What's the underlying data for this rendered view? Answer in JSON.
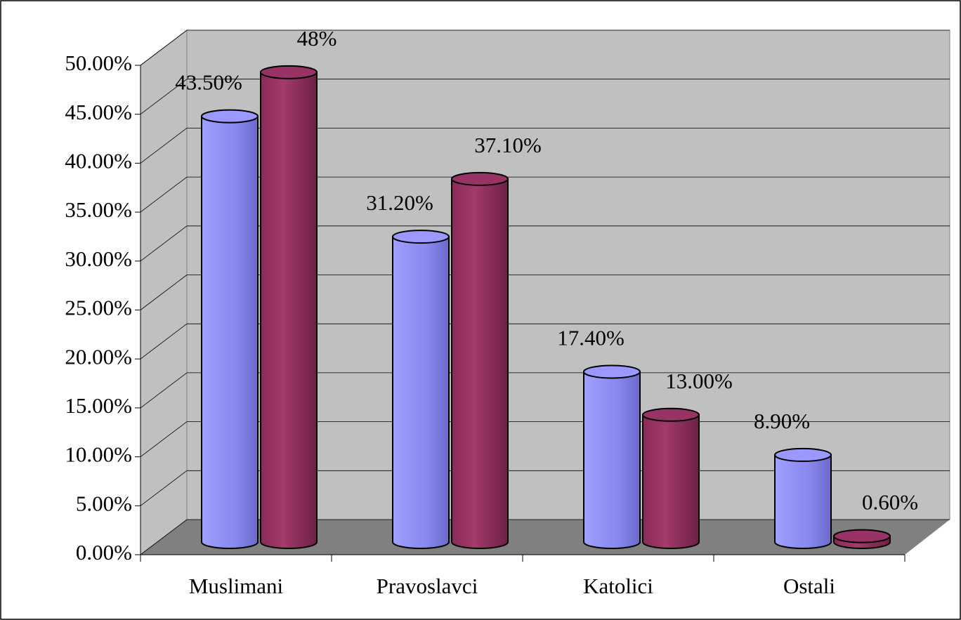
{
  "chart_data": {
    "type": "bar3d",
    "categories": [
      "Muslimani",
      "Pravoslavci",
      "Katolici",
      "Ostali"
    ],
    "series": [
      {
        "color": "#9999ff",
        "values": [
          43.5,
          31.2,
          17.4,
          8.9
        ],
        "value_labels": [
          "43.50%",
          "31.20%",
          "17.40%",
          "8.90%"
        ]
      },
      {
        "color": "#993366",
        "values": [
          48,
          37.1,
          13.0,
          0.6
        ],
        "value_labels": [
          "48%",
          "37.10%",
          "13.00%",
          "0.60%"
        ]
      }
    ],
    "ylim": [
      0,
      50
    ],
    "yticks": [
      {
        "value": 0,
        "label": "0.00%"
      },
      {
        "value": 5,
        "label": "5.00%"
      },
      {
        "value": 10,
        "label": "10.00%"
      },
      {
        "value": 15,
        "label": "15.00%"
      },
      {
        "value": 20,
        "label": "20.00%"
      },
      {
        "value": 25,
        "label": "25.00%"
      },
      {
        "value": 30,
        "label": "30.00%"
      },
      {
        "value": 35,
        "label": "35.00%"
      },
      {
        "value": 40,
        "label": "40.00%"
      },
      {
        "value": 45,
        "label": "45.00%"
      },
      {
        "value": 50,
        "label": "50.00%"
      }
    ],
    "grid": true
  }
}
